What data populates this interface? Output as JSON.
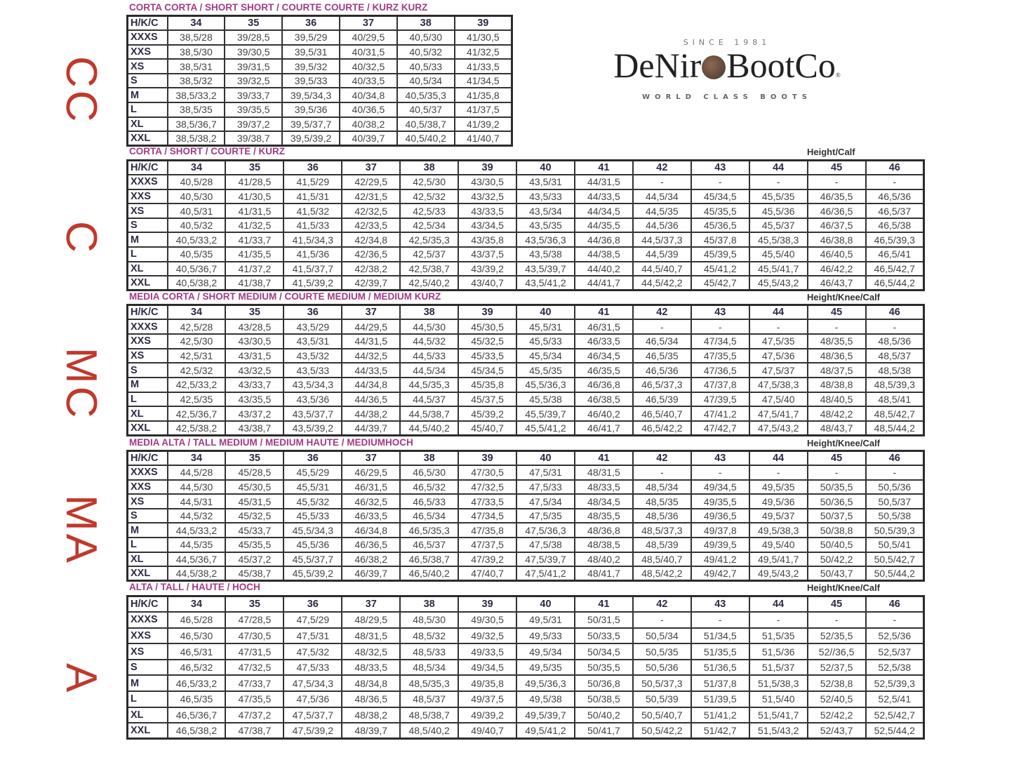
{
  "logo": {
    "since": "SINCE 1981",
    "brand_left": "DeNir",
    "brand_right": "BootCo",
    "reg": "®",
    "tagline": "WORLD CLASS BOOTS"
  },
  "side_labels": [
    "CC",
    "C",
    "MC",
    "MA",
    "A"
  ],
  "sections": [
    {
      "title": "CORTA CORTA / SHORT SHORT / COURTE COURTE / KURZ KURZ",
      "note": "",
      "headers": [
        "H/K/C",
        "34",
        "35",
        "36",
        "37",
        "38",
        "39"
      ],
      "rows": [
        {
          "size": "XXXS",
          "cells": [
            "38,5/28",
            "39/28,5",
            "39,5/29",
            "40/29,5",
            "40,5/30",
            "41/30,5"
          ]
        },
        {
          "size": "XXS",
          "cells": [
            "38,5/30",
            "39/30,5",
            "39,5/31",
            "40/31,5",
            "40,5/32",
            "41/32,5"
          ]
        },
        {
          "size": "XS",
          "cells": [
            "38,5/31",
            "39/31,5",
            "39,5/32",
            "40/32,5",
            "40,5/33",
            "41/33,5"
          ]
        },
        {
          "size": "S",
          "cells": [
            "38,5/32",
            "39/32,5",
            "39,5/33",
            "40/33,5",
            "40,5/34",
            "41/34,5"
          ]
        },
        {
          "size": "M",
          "cells": [
            "38,5/33,2",
            "39/33,7",
            "39,5/34,3",
            "40/34,8",
            "40,5/35,3",
            "41/35,8"
          ]
        },
        {
          "size": "L",
          "cells": [
            "38,5/35",
            "39/35,5",
            "39,5/36",
            "40/36,5",
            "40,5/37",
            "41/37,5"
          ]
        },
        {
          "size": "XL",
          "cells": [
            "38,5/36,7",
            "39/37,2",
            "39,5/37,7",
            "40/38,2",
            "40,5/38,7",
            "41/39,2"
          ]
        },
        {
          "size": "XXL",
          "cells": [
            "38,5/38,2",
            "39/38,7",
            "39,5/39,2",
            "40/39,7",
            "40,5/40,2",
            "41/40,7"
          ]
        }
      ]
    },
    {
      "title": "CORTA / SHORT / COURTE / KURZ",
      "note": "Height/Calf",
      "headers": [
        "H/K/C",
        "34",
        "35",
        "36",
        "37",
        "38",
        "39",
        "40",
        "41",
        "42",
        "43",
        "44",
        "45",
        "46"
      ],
      "rows": [
        {
          "size": "XXXS",
          "cells": [
            "40,5/28",
            "41/28,5",
            "41,5/29",
            "42/29,5",
            "42,5/30",
            "43/30,5",
            "43,5/31",
            "44/31,5",
            "-",
            "-",
            "-",
            "-",
            "-"
          ]
        },
        {
          "size": "XXS",
          "cells": [
            "40,5/30",
            "41/30,5",
            "41,5/31",
            "42/31,5",
            "42,5/32",
            "43/32,5",
            "43,5/33",
            "44/33,5",
            "44,5/34",
            "45/34,5",
            "45,5/35",
            "46/35,5",
            "46,5/36"
          ]
        },
        {
          "size": "XS",
          "cells": [
            "40,5/31",
            "41/31,5",
            "41,5/32",
            "42/32,5",
            "42,5/33",
            "43/33,5",
            "43,5/34",
            "44/34,5",
            "44,5/35",
            "45/35,5",
            "45,5/36",
            "46/36,5",
            "46,5/37"
          ]
        },
        {
          "size": "S",
          "cells": [
            "40,5/32",
            "41/32,5",
            "41,5/33",
            "42/33,5",
            "42,5/34",
            "43/34,5",
            "43,5/35",
            "44/35,5",
            "44,5/36",
            "45/36,5",
            "45,5/37",
            "46/37,5",
            "46,5/38"
          ]
        },
        {
          "size": "M",
          "cells": [
            "40,5/33,2",
            "41/33,7",
            "41,5/34,3",
            "42/34,8",
            "42,5/35,3",
            "43/35,8",
            "43,5/36,3",
            "44/36,8",
            "44,5/37,3",
            "45/37,8",
            "45,5/38,3",
            "46/38,8",
            "46,5/39,3"
          ]
        },
        {
          "size": "L",
          "cells": [
            "40,5/35",
            "41/35,5",
            "41,5/36",
            "42/36,5",
            "42,5/37",
            "43/37,5",
            "43,5/38",
            "44/38,5",
            "44,5/39",
            "45/39,5",
            "45,5/40",
            "46/40,5",
            "46,5/41"
          ]
        },
        {
          "size": "XL",
          "cells": [
            "40,5/36,7",
            "41/37,2",
            "41,5/37,7",
            "42/38,2",
            "42,5/38,7",
            "43/39,2",
            "43,5/39,7",
            "44/40,2",
            "44,5/40,7",
            "45/41,2",
            "45,5/41,7",
            "46/42,2",
            "46,5/42,7"
          ]
        },
        {
          "size": "XXL",
          "cells": [
            "40,5/38,2",
            "41/38,7",
            "41,5/39,2",
            "42/39,7",
            "42,5/40,2",
            "43/40,7",
            "43,5/41,2",
            "44/41,7",
            "44,5/42,2",
            "45/42,7",
            "45,5/43,2",
            "46/43,7",
            "46,5/44,2"
          ]
        }
      ]
    },
    {
      "title": "MEDIA CORTA / SHORT MEDIUM / COURTE MEDIUM / MEDIUM KURZ",
      "note": "Height/Knee/Calf",
      "headers": [
        "H/K/C",
        "34",
        "35",
        "36",
        "37",
        "38",
        "39",
        "40",
        "41",
        "42",
        "43",
        "44",
        "45",
        "46"
      ],
      "rows": [
        {
          "size": "XXXS",
          "cells": [
            "42,5/28",
            "43/28,5",
            "43,5/29",
            "44/29,5",
            "44,5/30",
            "45/30,5",
            "45,5/31",
            "46/31,5",
            "-",
            "-",
            "-",
            "-",
            "-"
          ]
        },
        {
          "size": "XXS",
          "cells": [
            "42,5/30",
            "43/30,5",
            "43,5/31",
            "44/31,5",
            "44,5/32",
            "45/32,5",
            "45,5/33",
            "46/33,5",
            "46,5/34",
            "47/34,5",
            "47,5/35",
            "48/35,5",
            "48,5/36"
          ]
        },
        {
          "size": "XS",
          "cells": [
            "42,5/31",
            "43/31,5",
            "43,5/32",
            "44/32,5",
            "44,5/33",
            "45/33,5",
            "45,5/34",
            "46/34,5",
            "46,5/35",
            "47/35,5",
            "47,5/36",
            "48/36,5",
            "48,5/37"
          ]
        },
        {
          "size": "S",
          "cells": [
            "42,5/32",
            "43/32,5",
            "43,5/33",
            "44/33,5",
            "44,5/34",
            "45/34,5",
            "45,5/35",
            "46/35,5",
            "46,5/36",
            "47/36,5",
            "47,5/37",
            "48/37,5",
            "48,5/38"
          ]
        },
        {
          "size": "M",
          "cells": [
            "42,5/33,2",
            "43/33,7",
            "43,5/34,3",
            "44/34,8",
            "44,5/35,3",
            "45/35,8",
            "45,5/36,3",
            "46/36,8",
            "46,5/37,3",
            "47/37,8",
            "47,5/38,3",
            "48/38,8",
            "48,5/39,3"
          ]
        },
        {
          "size": "L",
          "cells": [
            "42,5/35",
            "43/35,5",
            "43,5/36",
            "44/36,5",
            "44,5/37",
            "45/37,5",
            "45,5/38",
            "46/38,5",
            "46,5/39",
            "47/39,5",
            "47,5/40",
            "48/40,5",
            "48,5/41"
          ]
        },
        {
          "size": "XL",
          "cells": [
            "42,5/36,7",
            "43/37,2",
            "43,5/37,7",
            "44/38,2",
            "44,5/38,7",
            "45/39,2",
            "45,5/39,7",
            "46/40,2",
            "46,5/40,7",
            "47/41,2",
            "47,5/41,7",
            "48/42,2",
            "48,5/42,7"
          ]
        },
        {
          "size": "XXL",
          "cells": [
            "42,5/38,2",
            "43/38,7",
            "43,5/39,2",
            "44/39,7",
            "44,5/40,2",
            "45/40,7",
            "45,5/41,2",
            "46/41,7",
            "46,5/42,2",
            "47/42,7",
            "47,5/43,2",
            "48/43,7",
            "48,5/44,2"
          ]
        }
      ]
    },
    {
      "title": "MEDIA ALTA / TALL MEDIUM / MEDIUM HAUTE / MEDIUMHOCH",
      "note": "Height/Knee/Calf",
      "headers": [
        "H/K/C",
        "34",
        "35",
        "36",
        "37",
        "38",
        "39",
        "40",
        "41",
        "42",
        "43",
        "44",
        "45",
        "46"
      ],
      "rows": [
        {
          "size": "XXXS",
          "cells": [
            "44,5/28",
            "45/28,5",
            "45,5/29",
            "46/29,5",
            "46,5/30",
            "47/30,5",
            "47,5/31",
            "48/31,5",
            "-",
            "-",
            "-",
            "-",
            "-"
          ]
        },
        {
          "size": "XXS",
          "cells": [
            "44,5/30",
            "45/30,5",
            "45,5/31",
            "46/31,5",
            "46,5/32",
            "47/32,5",
            "47,5/33",
            "48/33,5",
            "48,5/34",
            "49/34,5",
            "49,5/35",
            "50/35,5",
            "50,5/36"
          ]
        },
        {
          "size": "XS",
          "cells": [
            "44,5/31",
            "45/31,5",
            "45,5/32",
            "46/32,5",
            "46,5/33",
            "47/33,5",
            "47,5/34",
            "48/34,5",
            "48,5/35",
            "49/35,5",
            "49,5/36",
            "50/36,5",
            "50,5/37"
          ]
        },
        {
          "size": "S",
          "cells": [
            "44,5/32",
            "45/32,5",
            "45,5/33",
            "46/33,5",
            "46,5/34",
            "47/34,5",
            "47,5/35",
            "48/35,5",
            "48,5/36",
            "49/36,5",
            "49,5/37",
            "50/37,5",
            "50,5/38"
          ]
        },
        {
          "size": "M",
          "cells": [
            "44,5/33,2",
            "45/33,7",
            "45,5/34,3",
            "46/34,8",
            "46,5/35,3",
            "47/35,8",
            "47,5/36,3",
            "48/36,8",
            "48,5/37,3",
            "49/37,8",
            "49,5/38,3",
            "50/38,8",
            "50,5/39,3"
          ]
        },
        {
          "size": "L",
          "cells": [
            "44,5/35",
            "45/35,5",
            "45,5/36",
            "46/36,5",
            "46,5/37",
            "47/37,5",
            "47,5/38",
            "48/38,5",
            "48,5/39",
            "49/39,5",
            "49,5/40",
            "50/40,5",
            "50,5/41"
          ]
        },
        {
          "size": "XL",
          "cells": [
            "44,5/36,7",
            "45/37,2",
            "45,5/37,7",
            "46/38,2",
            "46,5/38,7",
            "47/39,2",
            "47,5/39,7",
            "48/40,2",
            "48,5/40,7",
            "49/41,2",
            "49,5/41,7",
            "50/42,2",
            "50,5/42,7"
          ]
        },
        {
          "size": "XXL",
          "cells": [
            "44,5/38,2",
            "45/38,7",
            "45,5/39,2",
            "46/39,7",
            "46,5/40,2",
            "47/40,7",
            "47,5/41,2",
            "48/41,7",
            "48,5/42,2",
            "49/42,7",
            "49,5/43,2",
            "50/43,7",
            "50,5/44,2"
          ]
        }
      ]
    },
    {
      "title": "ALTA / TALL / HAUTE / HOCH",
      "note": "Height/Knee/Calf",
      "headers": [
        "H/K/C",
        "34",
        "35",
        "36",
        "37",
        "38",
        "39",
        "40",
        "41",
        "42",
        "43",
        "44",
        "45",
        "46"
      ],
      "rows": [
        {
          "size": "XXXS",
          "cells": [
            "46,5/28",
            "47/28,5",
            "47,5/29",
            "48/29,5",
            "48,5/30",
            "49/30,5",
            "49,5/31",
            "50/31,5",
            "-",
            "-",
            "-",
            "-",
            "-"
          ]
        },
        {
          "size": "XXS",
          "cells": [
            "46,5/30",
            "47/30,5",
            "47,5/31",
            "48/31,5",
            "48,5/32",
            "49/32,5",
            "49,5/33",
            "50/33,5",
            "50,5/34",
            "51/34,5",
            "51,5/35",
            "52/35,5",
            "52,5/36"
          ]
        },
        {
          "size": "XS",
          "cells": [
            "46,5/31",
            "47/31,5",
            "47,5/32",
            "48/32,5",
            "48,5/33",
            "49/33,5",
            "49,5/34",
            "50/34,5",
            "50,5/35",
            "51/35,5",
            "51,5/36",
            "52//36,5",
            "52,5/37"
          ]
        },
        {
          "size": "S",
          "cells": [
            "46,5/32",
            "47/32,5",
            "47,5/33",
            "48/33,5",
            "48,5/34",
            "49/34,5",
            "49,5/35",
            "50/35,5",
            "50,5/36",
            "51/36,5",
            "51,5/37",
            "52/37,5",
            "52,5/38"
          ]
        },
        {
          "size": "M",
          "cells": [
            "46,5/33,2",
            "47/33,7",
            "47,5/34,3",
            "48/34,8",
            "48,5/35,3",
            "49/35,8",
            "49,5/36,3",
            "50/36,8",
            "50,5/37,3",
            "51/37,8",
            "51,5/38,3",
            "52/38,8",
            "52,5/39,3"
          ]
        },
        {
          "size": "L",
          "cells": [
            "46,5/35",
            "47/35,5",
            "47,5/36",
            "48/36,5",
            "48,5/37",
            "49/37,5",
            "49,5/38",
            "50/38,5",
            "50,5/39",
            "51/39,5",
            "51,5/40",
            "52/40,5",
            "52,5/41"
          ]
        },
        {
          "size": "XL",
          "cells": [
            "46,5/36,7",
            "47/37,2",
            "47,5/37,7",
            "48/38,2",
            "48,5/38,7",
            "49/39,2",
            "49,5/39,7",
            "50/40,2",
            "50,5/40,7",
            "51/41,2",
            "51,5/41,7",
            "52/42,2",
            "52,5/42,7"
          ]
        },
        {
          "size": "XXL",
          "cells": [
            "46,5/38,2",
            "47/38,7",
            "47,5/39,2",
            "48/39,7",
            "48,5/40,2",
            "49/40,7",
            "49,5/41,2",
            "50/41,7",
            "50,5/42,2",
            "51/42,7",
            "51,5/43,2",
            "52/43,7",
            "52,5/44,2"
          ]
        }
      ]
    }
  ],
  "colors": {
    "side_label": "#c0392b",
    "section_title": "#a23a86",
    "header_text": "#2b2b45"
  }
}
